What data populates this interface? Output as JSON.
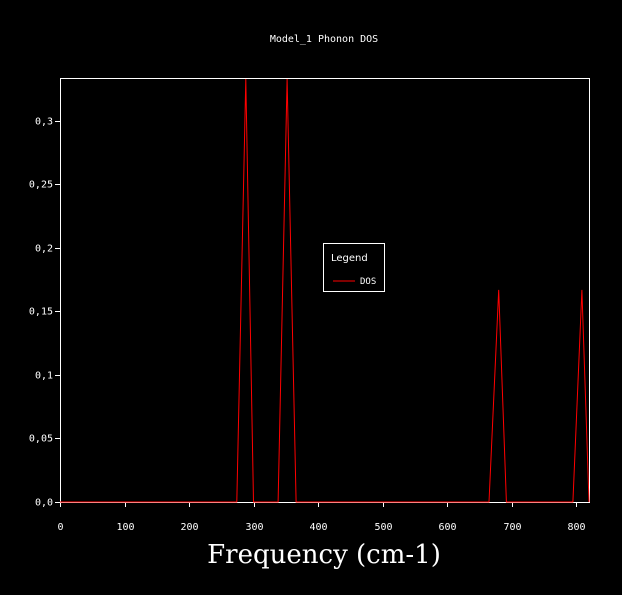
{
  "chart_data": {
    "type": "line",
    "title": "Model_1 Phonon DOS",
    "xlabel": "Frequency (cm-1)",
    "ylabel": "",
    "xlim": [
      0,
      820
    ],
    "ylim": [
      0,
      0.333
    ],
    "x_ticks": [
      0,
      100,
      200,
      300,
      400,
      500,
      600,
      700,
      800
    ],
    "x_tick_labels": [
      "0",
      "100",
      "200",
      "300",
      "400",
      "500",
      "600",
      "700",
      "800"
    ],
    "y_ticks": [
      0,
      0.05,
      0.1,
      0.15,
      0.2,
      0.25,
      0.3
    ],
    "y_tick_labels": [
      "0,0",
      "0,05",
      "0,1",
      "0,15",
      "0,2",
      "0,25",
      "0,3"
    ],
    "grid": false,
    "legend": {
      "title": "Legend",
      "position": "center"
    },
    "series": [
      {
        "name": "DOS",
        "color": "#ff0000",
        "x": [
          0,
          274,
          288,
          300,
          338,
          352,
          366,
          820
        ],
        "y": [
          0,
          0,
          0.333,
          0,
          0,
          0.333,
          0,
          0
        ],
        "segments": [
          {
            "x": [
              0,
              274,
              288,
              300,
              338,
              352,
              366,
              665,
              680,
              692,
              795,
              809,
              820
            ],
            "y": [
              0,
              0,
              0.333,
              0,
              0,
              0.333,
              0,
              0,
              0.167,
              0,
              0,
              0.167,
              0
            ]
          }
        ]
      }
    ]
  }
}
